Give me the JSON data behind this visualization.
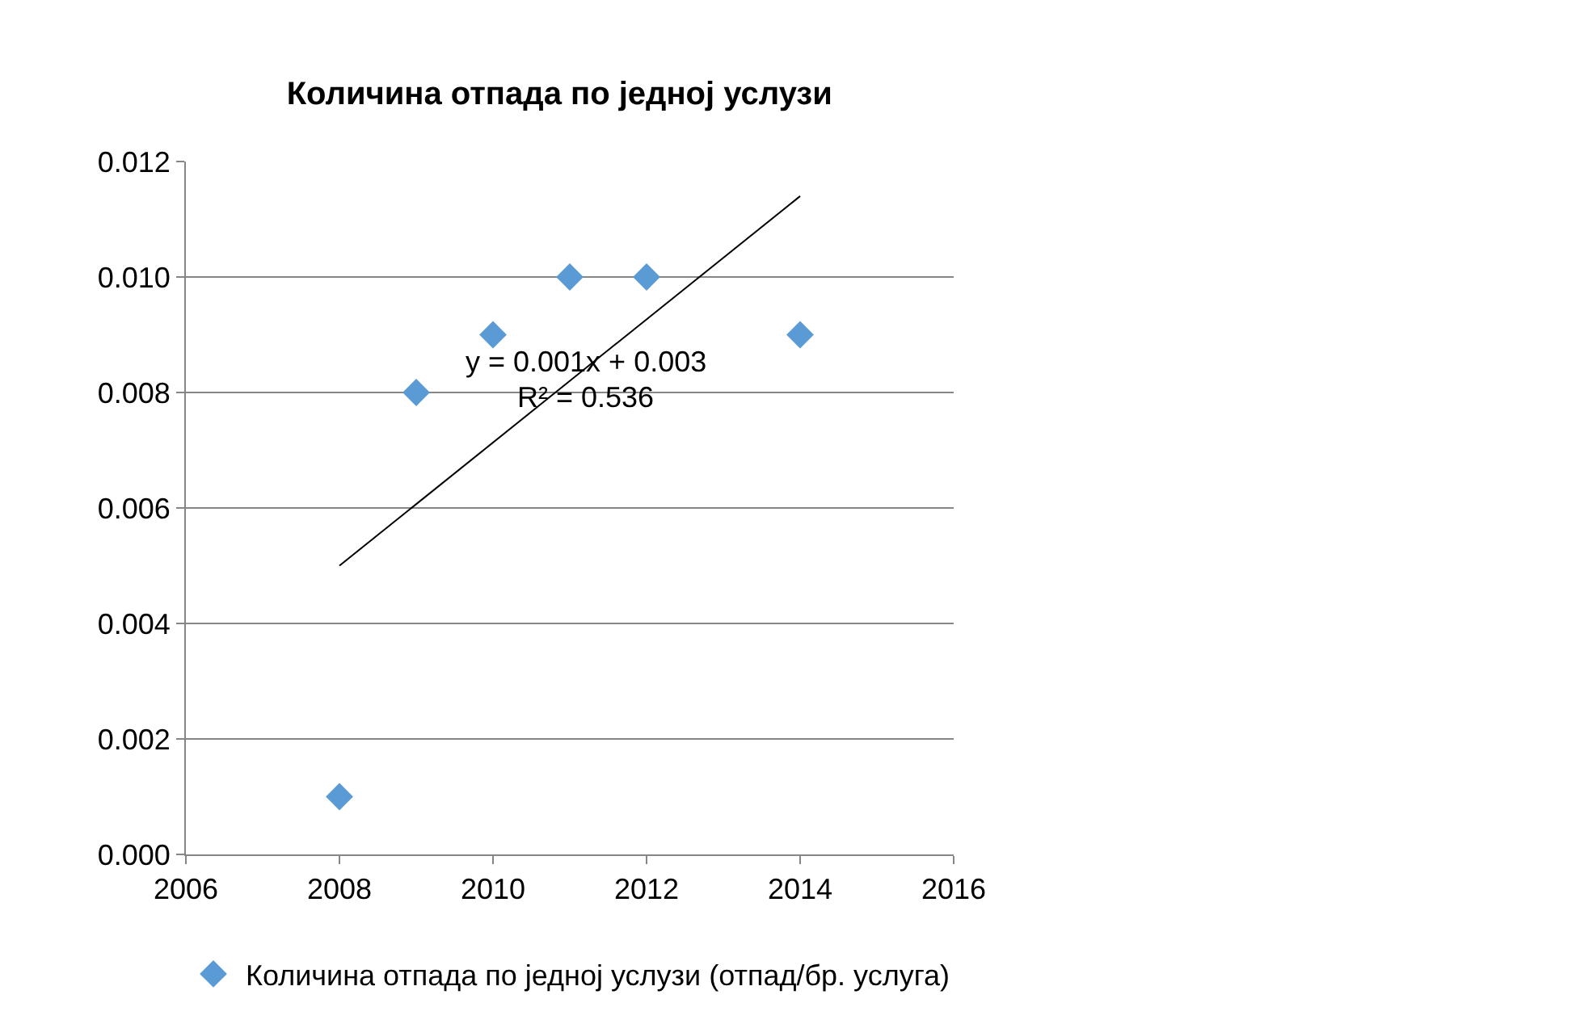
{
  "chart_data": {
    "type": "scatter",
    "title": "Количина отпада по једној услузи",
    "x": [
      2008,
      2009,
      2010,
      2011,
      2012,
      2014
    ],
    "series": [
      {
        "name": "Количина отпада по једној услузи (отпад/бр. услуга)",
        "color": "#5b9bd5",
        "values": [
          0.001,
          0.008,
          0.009,
          0.01,
          0.01,
          0.009
        ]
      },
      {
        "type": "line",
        "color": "#000000",
        "x": [
          2008,
          2014
        ],
        "values": [
          0.005,
          0.0114
        ],
        "marker": "none"
      }
    ],
    "annotations": [
      "y = 0.001x + 0.003",
      "R² = 0.536"
    ],
    "xlim": [
      2006,
      2016
    ],
    "xticks": [
      2006,
      2008,
      2010,
      2012,
      2014,
      2016
    ],
    "ylim": [
      0,
      0.012
    ],
    "yticks": [
      {
        "value": 0,
        "label": "0.000"
      },
      {
        "value": 0.002,
        "label": "0.002"
      },
      {
        "value": 0.004,
        "label": "0.004"
      },
      {
        "value": 0.006,
        "label": "0.006"
      },
      {
        "value": 0.008,
        "label": "0.008"
      },
      {
        "value": 0.01,
        "label": "0.010"
      },
      {
        "value": 0.012,
        "label": "0.012"
      }
    ],
    "grid": "y",
    "legend": "bottom",
    "marker": "diamond"
  }
}
